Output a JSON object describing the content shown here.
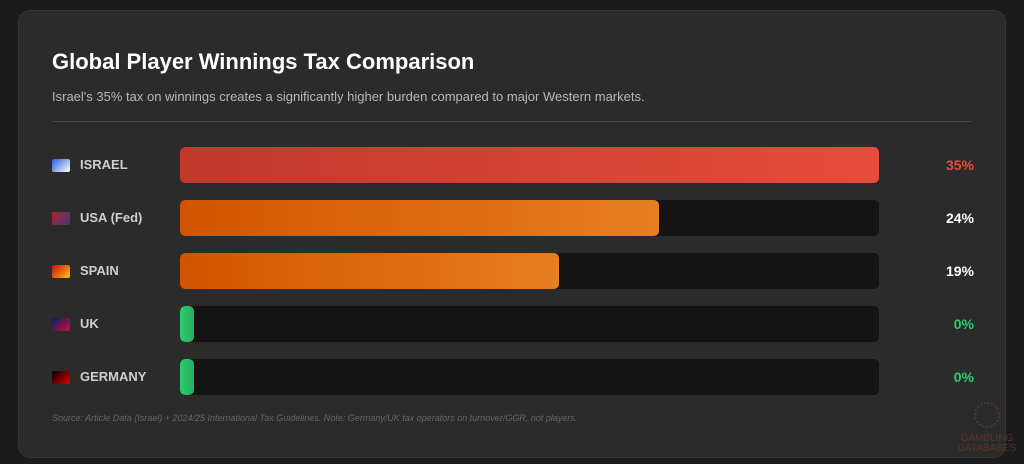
{
  "title": "Global Player Winnings Tax Comparison",
  "subtitle": "Israel's 35% tax on winnings creates a significantly higher burden compared to major Western markets.",
  "source": "Source: Article Data (Israel) + 2024/25 International Tax Guidelines. Note: Germany/UK tax operators on turnover/GGR, not players.",
  "watermark": "GAMBLING DATABASES",
  "chart_data": {
    "type": "bar",
    "orientation": "horizontal",
    "categories": [
      "ISRAEL",
      "USA (Fed)",
      "SPAIN",
      "UK",
      "GERMANY"
    ],
    "values": [
      35,
      24,
      19,
      0,
      0
    ],
    "value_labels": [
      "35%",
      "24%",
      "19%",
      "0%",
      "0%"
    ],
    "xlim": [
      0,
      35
    ],
    "unit": "%",
    "grid": false,
    "bar_colors": [
      [
        "#c0392b",
        "#e74c3c"
      ],
      [
        "#d35400",
        "#e67e22"
      ],
      [
        "#d35400",
        "#e67e22"
      ],
      [
        "#2ecc71",
        "#27ae60"
      ],
      [
        "#2ecc71",
        "#27ae60"
      ]
    ],
    "label_colors": [
      "#e74c3c",
      "#ffffff",
      "#ffffff",
      "#2ecc71",
      "#2ecc71"
    ],
    "flag_colors": [
      [
        "#2a5bd7",
        "#ffffff"
      ],
      [
        "#b22234",
        "#3c3b6e"
      ],
      [
        "#c60b1e",
        "#ffc400"
      ],
      [
        "#012169",
        "#c8102e"
      ],
      [
        "#000000",
        "#dd0000"
      ]
    ]
  }
}
